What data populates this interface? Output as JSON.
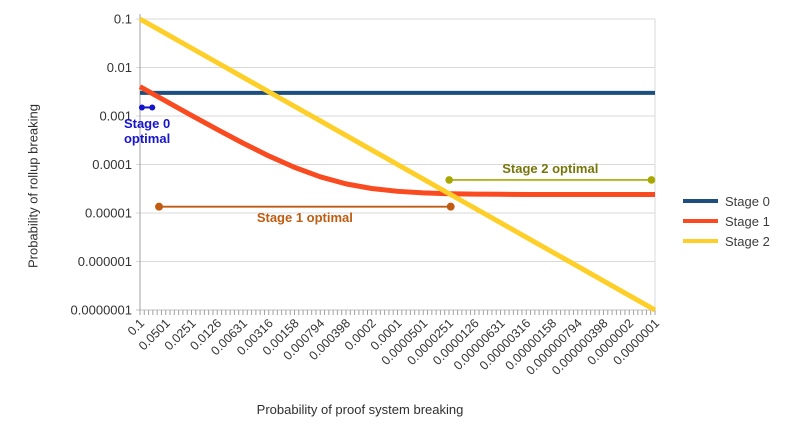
{
  "chart_data": {
    "type": "line",
    "title": "",
    "xlabel": "Probability of proof system breaking",
    "ylabel": "Probability of rollup breaking",
    "x_scale": "log",
    "y_scale": "log",
    "x_range_log": [
      -1,
      -7
    ],
    "y_range_log": [
      -1,
      -7
    ],
    "grid": "horizontal",
    "legend_position": "right",
    "x_tick_labels": [
      "0.1",
      "0.0501",
      "0.0251",
      "0.0126",
      "0.00631",
      "0.00316",
      "0.00158",
      "0.000794",
      "0.000398",
      "0.0002",
      "0.0001",
      "0.0000501",
      "0.0000251",
      "0.0000126",
      "0.00000631",
      "0.00000316",
      "0.00000158",
      "0.000000794",
      "0.000000398",
      "0.0000002",
      "0.0000001"
    ],
    "x_tick_values": [
      0.1,
      0.0501,
      0.0251,
      0.0126,
      0.00631,
      0.00316,
      0.00158,
      0.000794,
      0.000398,
      0.0002,
      0.0001,
      5.01e-05,
      2.51e-05,
      1.26e-05,
      6.31e-06,
      3.16e-06,
      1.58e-06,
      7.94e-07,
      3.98e-07,
      2e-07,
      1e-07
    ],
    "y_tick_labels": [
      "0.1",
      "0.01",
      "0.001",
      "0.0001",
      "0.00001",
      "0.000001",
      "0.0000001"
    ],
    "y_tick_values": [
      0.1,
      0.01,
      0.001,
      0.0001,
      1e-05,
      1e-06,
      1e-07
    ],
    "series": [
      {
        "name": "Stage 0",
        "color": "#1C4E80",
        "width": 4,
        "values": [
          0.003,
          0.003,
          0.003,
          0.003,
          0.003,
          0.003,
          0.003,
          0.003,
          0.003,
          0.003,
          0.003,
          0.003,
          0.003,
          0.003,
          0.003,
          0.003,
          0.003,
          0.003,
          0.003,
          0.003,
          0.003
        ]
      },
      {
        "name": "Stage 1",
        "color": "#F94A20",
        "width": 5,
        "values": [
          0.00402,
          0.00203,
          0.00103,
          0.000528,
          0.000276,
          0.00015,
          8.72e-05,
          5.58e-05,
          3.99e-05,
          3.2e-05,
          2.8e-05,
          2.6e-05,
          2.5e-05,
          2.45e-05,
          2.43e-05,
          2.41e-05,
          2.41e-05,
          2.4e-05,
          2.4e-05,
          2.4e-05,
          2.4e-05
        ]
      },
      {
        "name": "Stage 2",
        "color": "#FFCF29",
        "width": 5,
        "values": [
          0.1,
          0.0501,
          0.0251,
          0.0126,
          0.00631,
          0.00316,
          0.00158,
          0.000794,
          0.000398,
          0.0002,
          0.0001,
          5.01e-05,
          2.51e-05,
          1.26e-05,
          6.31e-06,
          3.16e-06,
          1.58e-06,
          7.94e-07,
          3.98e-07,
          2e-07,
          1e-07
        ]
      }
    ],
    "annotations": [
      {
        "label": "Stage 0\noptimal",
        "color": "#1515CD",
        "x_from": 0.095,
        "x_to": 0.072,
        "y": 0.0015
      },
      {
        "label": "Stage 1 optimal",
        "color": "#C05C11",
        "x_from": 0.06,
        "x_to": 2.4e-05,
        "y": 1.35e-05
      },
      {
        "label": "Stage 2 optimal",
        "color": "#A8A800",
        "text_color": "#76760A",
        "x_from": 2.5e-05,
        "x_to": 1.1e-07,
        "y": 4.8e-05
      }
    ]
  },
  "legend": {
    "items": [
      {
        "label": "Stage 0"
      },
      {
        "label": "Stage 1"
      },
      {
        "label": "Stage 2"
      }
    ]
  },
  "colors": {
    "gridline": "#D9D9D9",
    "axis": "#A0A0A0",
    "tick_text": "#333333"
  }
}
